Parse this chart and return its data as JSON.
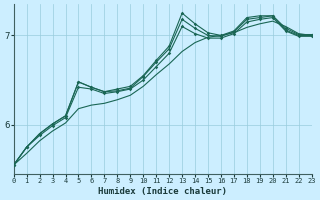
{
  "xlabel": "Humidex (Indice chaleur)",
  "bg_color": "#cceeff",
  "grid_color": "#99ccdd",
  "line_color": "#1a6655",
  "x_ticks": [
    0,
    1,
    2,
    3,
    4,
    5,
    6,
    7,
    8,
    9,
    10,
    11,
    12,
    13,
    14,
    15,
    16,
    17,
    18,
    19,
    20,
    21,
    22,
    23
  ],
  "y_ticks": [
    6,
    7
  ],
  "xlim": [
    0,
    23
  ],
  "ylim": [
    5.45,
    7.35
  ],
  "series": [
    [
      5.55,
      5.75,
      5.9,
      6.01,
      6.1,
      6.48,
      6.42,
      6.37,
      6.4,
      6.43,
      6.55,
      6.72,
      6.88,
      7.25,
      7.13,
      7.03,
      7.0,
      7.05,
      7.2,
      7.22,
      7.22,
      7.08,
      7.01,
      7.01
    ],
    [
      5.55,
      5.75,
      5.9,
      6.01,
      6.1,
      6.48,
      6.42,
      6.37,
      6.38,
      6.41,
      6.54,
      6.7,
      6.85,
      7.18,
      7.08,
      7.0,
      6.99,
      7.04,
      7.18,
      7.2,
      7.22,
      7.06,
      7.0,
      7.0
    ],
    [
      5.55,
      5.75,
      5.88,
      5.99,
      6.08,
      6.42,
      6.4,
      6.35,
      6.37,
      6.4,
      6.5,
      6.65,
      6.8,
      7.1,
      7.02,
      6.97,
      6.97,
      7.02,
      7.15,
      7.18,
      7.2,
      7.05,
      6.99,
      6.99
    ],
    [
      5.55,
      5.68,
      5.82,
      5.93,
      6.02,
      6.18,
      6.22,
      6.24,
      6.28,
      6.33,
      6.43,
      6.56,
      6.68,
      6.82,
      6.92,
      6.98,
      7.0,
      7.03,
      7.09,
      7.13,
      7.16,
      7.1,
      7.02,
      7.0
    ]
  ],
  "has_markers": [
    true,
    true,
    true,
    false
  ]
}
